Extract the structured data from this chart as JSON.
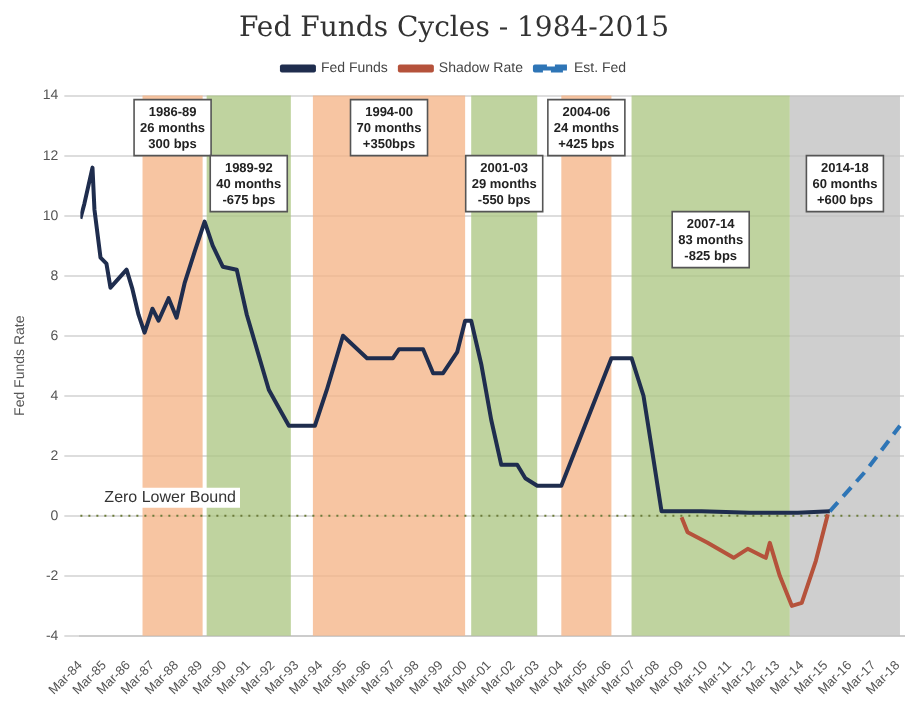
{
  "chart_data": {
    "type": "line",
    "title": "Fed Funds Cycles - 1984-2015",
    "ylabel": "Fed Funds Rate",
    "legend": "top",
    "grid": "y",
    "marker": "none",
    "xlim": [
      "1984-03",
      "2018-06"
    ],
    "xticks": [
      {
        "value": "1984-03",
        "label": "Mar-84"
      },
      {
        "value": "1985-03",
        "label": "Mar-85"
      },
      {
        "value": "1986-03",
        "label": "Mar-86"
      },
      {
        "value": "1987-03",
        "label": "Mar-87"
      },
      {
        "value": "1988-03",
        "label": "Mar-88"
      },
      {
        "value": "1989-03",
        "label": "Mar-89"
      },
      {
        "value": "1990-03",
        "label": "Mar-90"
      },
      {
        "value": "1991-03",
        "label": "Mar-91"
      },
      {
        "value": "1992-03",
        "label": "Mar-92"
      },
      {
        "value": "1993-03",
        "label": "Mar-93"
      },
      {
        "value": "1994-03",
        "label": "Mar-94"
      },
      {
        "value": "1995-03",
        "label": "Mar-95"
      },
      {
        "value": "1996-03",
        "label": "Mar-96"
      },
      {
        "value": "1997-03",
        "label": "Mar-97"
      },
      {
        "value": "1998-03",
        "label": "Mar-98"
      },
      {
        "value": "1999-03",
        "label": "Mar-99"
      },
      {
        "value": "2000-03",
        "label": "Mar-00"
      },
      {
        "value": "2001-03",
        "label": "Mar-01"
      },
      {
        "value": "2002-03",
        "label": "Mar-02"
      },
      {
        "value": "2003-03",
        "label": "Mar-03"
      },
      {
        "value": "2004-03",
        "label": "Mar-04"
      },
      {
        "value": "2005-03",
        "label": "Mar-05"
      },
      {
        "value": "2006-03",
        "label": "Mar-06"
      },
      {
        "value": "2007-03",
        "label": "Mar-07"
      },
      {
        "value": "2008-03",
        "label": "Mar-08"
      },
      {
        "value": "2009-03",
        "label": "Mar-09"
      },
      {
        "value": "2010-03",
        "label": "Mar-10"
      },
      {
        "value": "2011-03",
        "label": "Mar-11"
      },
      {
        "value": "2012-03",
        "label": "Mar-12"
      },
      {
        "value": "2013-03",
        "label": "Mar-13"
      },
      {
        "value": "2014-03",
        "label": "Mar-14"
      },
      {
        "value": "2015-03",
        "label": "Mar-15"
      },
      {
        "value": "2016-03",
        "label": "Mar-16"
      },
      {
        "value": "2017-03",
        "label": "Mar-17"
      },
      {
        "value": "2018-03",
        "label": "Mar-18"
      }
    ],
    "ylim": [
      -4,
      14
    ],
    "yticks": [
      -4,
      -2,
      0,
      2,
      4,
      6,
      8,
      10,
      12,
      14
    ],
    "series": [
      {
        "name": "Fed Funds",
        "type": "line",
        "color": "#1f2d4e",
        "line_style": "solid",
        "x": [
          "1984-03",
          "1984-05",
          "1984-09",
          "1984-10",
          "1985-01",
          "1985-04",
          "1985-06",
          "1986-02",
          "1986-05",
          "1986-08",
          "1986-11",
          "1987-03",
          "1987-06",
          "1987-11",
          "1988-03",
          "1988-07",
          "1988-12",
          "1989-05",
          "1989-09",
          "1990-02",
          "1990-09",
          "1991-02",
          "1991-06",
          "1992-01",
          "1992-06",
          "1992-11",
          "1993-12",
          "1994-06",
          "1995-02",
          "1996-02",
          "1997-03",
          "1997-06",
          "1998-06",
          "1998-11",
          "1999-04",
          "1999-11",
          "2000-03",
          "2000-06",
          "2000-11",
          "2001-04",
          "2001-09",
          "2002-05",
          "2002-09",
          "2003-03",
          "2004-03",
          "2006-04",
          "2007-02",
          "2007-08",
          "2007-12",
          "2008-05",
          "2010-01",
          "2012-01",
          "2014-01",
          "2015-05"
        ],
        "values": [
          9.9,
          10.4,
          11.6,
          10.2,
          8.6,
          8.4,
          7.6,
          8.2,
          7.55,
          6.7,
          6.1,
          6.9,
          6.5,
          7.25,
          6.6,
          7.75,
          8.8,
          9.8,
          9.0,
          8.3,
          8.2,
          6.7,
          5.8,
          4.2,
          3.6,
          3.0,
          3.0,
          4.2,
          6.0,
          5.25,
          5.25,
          5.55,
          5.55,
          4.75,
          4.75,
          5.45,
          6.5,
          6.5,
          5.05,
          3.2,
          1.7,
          1.7,
          1.25,
          1.0,
          1.0,
          5.25,
          5.25,
          4.0,
          2.3,
          0.15,
          0.15,
          0.1,
          0.1,
          0.15
        ]
      },
      {
        "name": "Shadow Rate",
        "type": "line",
        "color": "#b5523b",
        "line_style": "solid",
        "x": [
          "2009-03",
          "2009-06",
          "2010-04",
          "2011-05",
          "2011-12",
          "2012-09",
          "2012-11",
          "2013-04",
          "2013-10",
          "2014-03",
          "2014-10",
          "2015-04"
        ],
        "values": [
          -0.05,
          -0.55,
          -0.9,
          -1.4,
          -1.1,
          -1.4,
          -0.9,
          -2.0,
          -3.0,
          -2.9,
          -1.5,
          0.05
        ]
      },
      {
        "name": "Est. Fed",
        "type": "line",
        "color": "#2e75b6",
        "line_style": "dashed",
        "x": [
          "2015-05",
          "2016-11",
          "2018-04"
        ],
        "values": [
          0.15,
          1.5,
          3.0
        ]
      }
    ],
    "bands": [
      {
        "axis": "x",
        "from": "1986-10",
        "to": "1989-04",
        "label": "1986-89\n26 months\n300 bps",
        "color": "#f4b183"
      },
      {
        "axis": "x",
        "from": "1989-06",
        "to": "1992-12",
        "label": "1989-92\n40 months\n-675 bps",
        "color": "#a9c47f"
      },
      {
        "axis": "x",
        "from": "1993-11",
        "to": "2000-03",
        "label": "1994-00\n70 months\n+350bps",
        "color": "#f4b183"
      },
      {
        "axis": "x",
        "from": "2000-06",
        "to": "2003-03",
        "label": "2001-03\n29 months\n-550 bps",
        "color": "#a9c47f"
      },
      {
        "axis": "x",
        "from": "2004-03",
        "to": "2006-04",
        "label": "2004-06\n24 months\n+425 bps",
        "color": "#f4b183"
      },
      {
        "axis": "x",
        "from": "2007-02",
        "to": "2013-09",
        "label": "2007-14\n83 months\n-825 bps",
        "color": "#a9c47f"
      },
      {
        "axis": "x",
        "from": "2013-09",
        "to": "2018-04",
        "label": "2014-18\n60 months\n+600 bps",
        "color": "#bfbfbf"
      }
    ],
    "ref_lines": [
      {
        "axis": "y",
        "value": 0,
        "label": "Zero Lower Bound",
        "color": "#6b7b3a",
        "line_style": "dotted"
      }
    ]
  }
}
